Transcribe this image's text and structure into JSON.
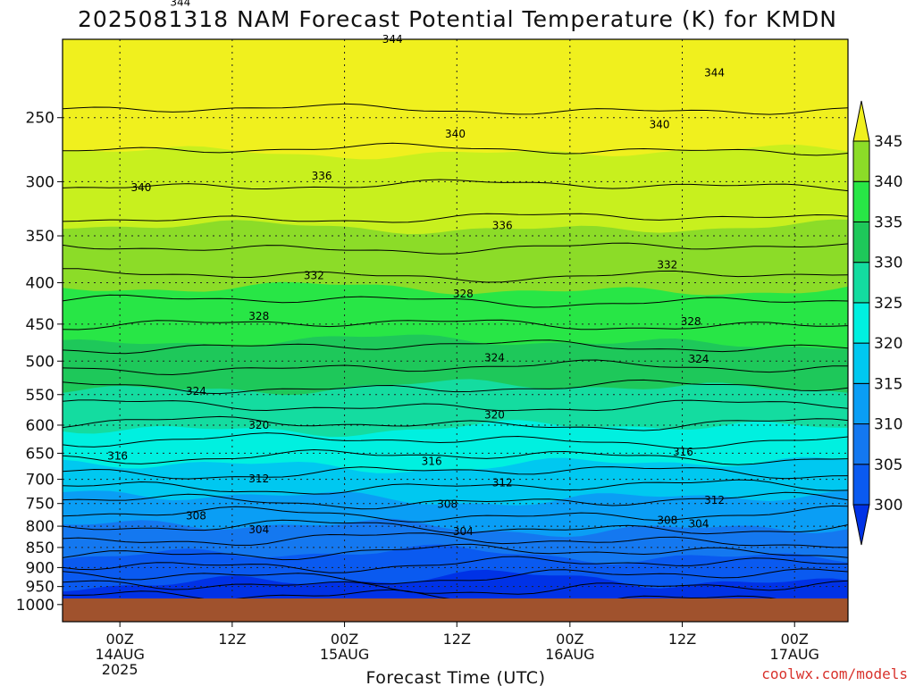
{
  "title": "2025081318 NAM Forecast Potential Temperature (K) for KMDN",
  "xlabel": "Forecast Time (UTC)",
  "credit": "coolwx.com/models",
  "chart_data": {
    "type": "heatmap",
    "title": "2025081318 NAM Forecast Potential Temperature (K) for KMDN",
    "xlabel": "Forecast Time (UTC)",
    "ylabel": "",
    "variable": "Potential Temperature (K)",
    "y_ticks": [
      250,
      300,
      350,
      400,
      450,
      500,
      550,
      600,
      650,
      700,
      750,
      800,
      850,
      900,
      950,
      1000
    ],
    "x_ticks": [
      {
        "label": "00Z",
        "date": "14AUG",
        "year": "2025"
      },
      {
        "label": "12Z",
        "date": "",
        "year": ""
      },
      {
        "label": "00Z",
        "date": "15AUG",
        "year": ""
      },
      {
        "label": "12Z",
        "date": "",
        "year": ""
      },
      {
        "label": "00Z",
        "date": "16AUG",
        "year": ""
      },
      {
        "label": "12Z",
        "date": "",
        "year": ""
      },
      {
        "label": "00Z",
        "date": "17AUG",
        "year": ""
      }
    ],
    "colorbar_levels": [
      300,
      305,
      310,
      315,
      320,
      325,
      330,
      335,
      340,
      345
    ],
    "colors": [
      "#0032e6",
      "#0a5af0",
      "#1478f0",
      "#0a9ef5",
      "#00c8f0",
      "#00f0e0",
      "#14dca0",
      "#1ec85a",
      "#28e646",
      "#8cdc28",
      "#c8f01e",
      "#f0f01e"
    ],
    "ground_color": "#a0522d",
    "contour_labels": [
      {
        "text": "344",
        "x": 0.15,
        "y": 180
      },
      {
        "text": "344",
        "x": 0.42,
        "y": 200
      },
      {
        "text": "344",
        "x": 0.83,
        "y": 220
      },
      {
        "text": "340",
        "x": 0.1,
        "y": 305
      },
      {
        "text": "340",
        "x": 0.5,
        "y": 262
      },
      {
        "text": "340",
        "x": 0.76,
        "y": 255
      },
      {
        "text": "336",
        "x": 0.33,
        "y": 295
      },
      {
        "text": "336",
        "x": 0.56,
        "y": 340
      },
      {
        "text": "332",
        "x": 0.32,
        "y": 392
      },
      {
        "text": "332",
        "x": 0.77,
        "y": 380
      },
      {
        "text": "328",
        "x": 0.25,
        "y": 440
      },
      {
        "text": "328",
        "x": 0.51,
        "y": 413
      },
      {
        "text": "328",
        "x": 0.8,
        "y": 447
      },
      {
        "text": "324",
        "x": 0.17,
        "y": 545
      },
      {
        "text": "324",
        "x": 0.55,
        "y": 495
      },
      {
        "text": "324",
        "x": 0.81,
        "y": 497
      },
      {
        "text": "320",
        "x": 0.25,
        "y": 600
      },
      {
        "text": "320",
        "x": 0.55,
        "y": 583
      },
      {
        "text": "316",
        "x": 0.07,
        "y": 655
      },
      {
        "text": "316",
        "x": 0.47,
        "y": 665
      },
      {
        "text": "316",
        "x": 0.79,
        "y": 648
      },
      {
        "text": "312",
        "x": 0.25,
        "y": 699
      },
      {
        "text": "312",
        "x": 0.56,
        "y": 707
      },
      {
        "text": "312",
        "x": 0.83,
        "y": 743
      },
      {
        "text": "308",
        "x": 0.17,
        "y": 777
      },
      {
        "text": "308",
        "x": 0.49,
        "y": 752
      },
      {
        "text": "308",
        "x": 0.77,
        "y": 787
      },
      {
        "text": "304",
        "x": 0.25,
        "y": 808
      },
      {
        "text": "304",
        "x": 0.51,
        "y": 812
      },
      {
        "text": "304",
        "x": 0.81,
        "y": 795
      }
    ]
  }
}
